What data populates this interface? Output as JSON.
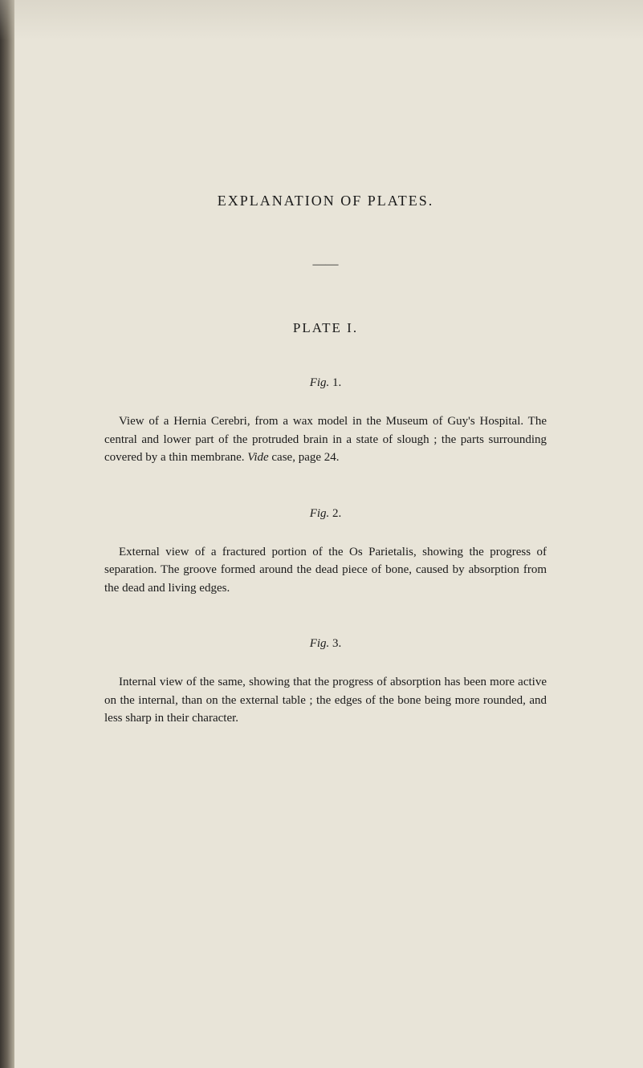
{
  "page": {
    "background_color": "#e8e4d8",
    "text_color": "#1a1a1a",
    "font_family": "Georgia, Times New Roman, serif"
  },
  "main_title": "EXPLANATION OF PLATES.",
  "divider": "——",
  "plate_title": "PLATE I.",
  "figures": [
    {
      "label_prefix": "Fig.",
      "label_number": "1.",
      "text_parts": [
        "View of a Hernia Cerebri, from a wax model in the Museum of Guy's Hospital. The central and lower part of the protruded brain in a state of slough ; the parts surrounding covered by a thin membrane. ",
        "Vide",
        " case, page 24."
      ]
    },
    {
      "label_prefix": "Fig.",
      "label_number": "2.",
      "text_parts": [
        "External view of a fractured portion of the Os Parietalis, showing the progress of separation. The groove formed around the dead piece of bone, caused by absorption from the dead and living edges."
      ]
    },
    {
      "label_prefix": "Fig.",
      "label_number": "3.",
      "text_parts": [
        "Internal view of the same, showing that the progress of absorption has been more active on the internal, than on the external table ; the edges of the bone being more rounded, and less sharp in their character."
      ]
    }
  ]
}
